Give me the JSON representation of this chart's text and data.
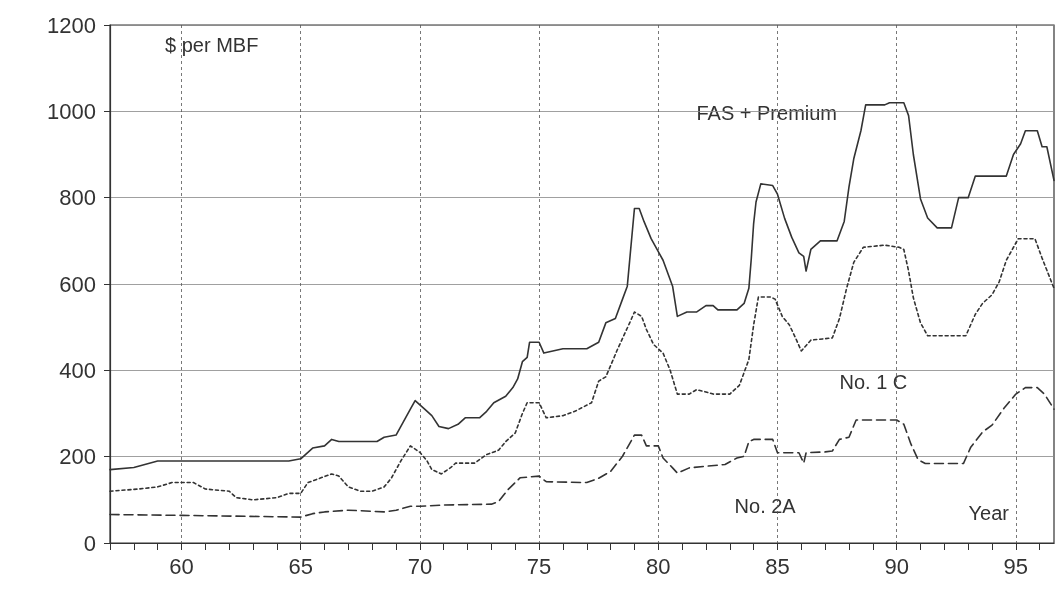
{
  "chart_data": {
    "type": "line",
    "xlabel": "Year",
    "ylabel": "$ per MBF",
    "xlim": [
      57,
      96.6
    ],
    "ylim": [
      0,
      1200
    ],
    "xticks": [
      {
        "value": 57,
        "label": null
      },
      {
        "value": 58,
        "label": null
      },
      {
        "value": 59,
        "label": null
      },
      60,
      {
        "value": 61,
        "label": null
      },
      {
        "value": 62,
        "label": null
      },
      {
        "value": 63,
        "label": null
      },
      {
        "value": 64,
        "label": null
      },
      65,
      {
        "value": 66,
        "label": null
      },
      {
        "value": 67,
        "label": null
      },
      {
        "value": 68,
        "label": null
      },
      {
        "value": 69,
        "label": null
      },
      70,
      {
        "value": 71,
        "label": null
      },
      {
        "value": 72,
        "label": null
      },
      {
        "value": 73,
        "label": null
      },
      {
        "value": 74,
        "label": null
      },
      75,
      {
        "value": 76,
        "label": null
      },
      {
        "value": 77,
        "label": null
      },
      {
        "value": 78,
        "label": null
      },
      {
        "value": 79,
        "label": null
      },
      80,
      {
        "value": 81,
        "label": null
      },
      {
        "value": 82,
        "label": null
      },
      {
        "value": 83,
        "label": null
      },
      {
        "value": 84,
        "label": null
      },
      85,
      {
        "value": 86,
        "label": null
      },
      {
        "value": 87,
        "label": null
      },
      {
        "value": 88,
        "label": null
      },
      {
        "value": 89,
        "label": null
      },
      90,
      {
        "value": 91,
        "label": null
      },
      {
        "value": 92,
        "label": null
      },
      {
        "value": 93,
        "label": null
      },
      {
        "value": 94,
        "label": null
      },
      95,
      {
        "value": 96,
        "label": null
      }
    ],
    "yticks": [
      0,
      200,
      400,
      600,
      800,
      1000,
      1200
    ],
    "grid": true,
    "legend": false,
    "marker": "none",
    "series": [
      {
        "name": "FAS + Premium",
        "color": "#333333",
        "line_style": "solid",
        "x": [
          57,
          58,
          59,
          64.5,
          65,
          65.5,
          66,
          66.3,
          66.6,
          68.2,
          68.5,
          69,
          69.3,
          69.6,
          69.8,
          70.2,
          70.5,
          70.8,
          71.2,
          71.6,
          71.9,
          72.5,
          72.8,
          73.1,
          73.6,
          73.9,
          74.1,
          74.3,
          74.5,
          74.6,
          75,
          75.2,
          76,
          77,
          77.5,
          77.8,
          78.2,
          78.5,
          78.7,
          79,
          79.2,
          79.4,
          79.7,
          80.2,
          80.6,
          80.8,
          81.2,
          81.6,
          82,
          82.3,
          82.5,
          83.3,
          83.6,
          83.8,
          83.9,
          84,
          84.1,
          84.3,
          84.8,
          85,
          85.3,
          85.6,
          85.9,
          86.1,
          86.2,
          86.4,
          86.8,
          87.5,
          87.8,
          88,
          88.2,
          88.5,
          88.7,
          89.5,
          89.7,
          90.3,
          90.5,
          90.7,
          91,
          91.3,
          91.7,
          92.3,
          92.6,
          93,
          93.3,
          94.6,
          94.9,
          95.2,
          95.4,
          95.9,
          96.1,
          96.3,
          96.6
        ],
        "values": [
          170,
          175,
          190,
          190,
          195,
          220,
          225,
          240,
          235,
          235,
          245,
          250,
          280,
          310,
          330,
          310,
          295,
          270,
          265,
          275,
          290,
          290,
          305,
          325,
          340,
          360,
          380,
          420,
          430,
          465,
          465,
          440,
          450,
          450,
          465,
          510,
          520,
          565,
          595,
          775,
          775,
          745,
          705,
          655,
          595,
          525,
          535,
          535,
          550,
          550,
          540,
          540,
          555,
          590,
          658,
          740,
          790,
          832,
          828,
          808,
          752,
          708,
          672,
          664,
          630,
          680,
          700,
          700,
          745,
          825,
          890,
          955,
          1015,
          1015,
          1020,
          1020,
          990,
          900,
          797,
          753,
          730,
          730,
          800,
          800,
          850,
          850,
          900,
          925,
          955,
          955,
          918,
          918,
          840
        ]
      },
      {
        "name": "No. 1 C",
        "color": "#333333",
        "line_style": "dotted",
        "x": [
          57,
          58.2,
          59,
          59.6,
          60.5,
          61,
          62,
          62.3,
          63,
          64,
          64.5,
          65,
          65.3,
          65.8,
          66.3,
          66.6,
          67,
          67.5,
          68,
          68.5,
          68.8,
          69.2,
          69.6,
          70,
          70.3,
          70.5,
          70.9,
          71.3,
          71.5,
          72.3,
          72.8,
          73.3,
          73.6,
          74,
          74.3,
          74.5,
          75,
          75.3,
          76,
          76.5,
          77.2,
          77.5,
          77.8,
          78.3,
          78.8,
          79,
          79.3,
          79.5,
          79.8,
          80.2,
          80.5,
          80.8,
          81.3,
          81.6,
          82,
          82.3,
          83,
          83.4,
          83.8,
          84,
          84.2,
          84.7,
          84.9,
          85.2,
          85.5,
          85.8,
          86,
          86.4,
          87.3,
          87.6,
          87.9,
          88.2,
          88.6,
          89.5,
          90.1,
          90.3,
          90.5,
          90.7,
          91,
          91.3,
          92.9,
          93.3,
          93.6,
          94,
          94.3,
          94.6,
          95.1,
          95.8,
          96.1,
          96.6
        ],
        "values": [
          120,
          125,
          130,
          140,
          140,
          125,
          120,
          105,
          100,
          105,
          115,
          115,
          140,
          150,
          160,
          155,
          130,
          120,
          120,
          130,
          150,
          190,
          225,
          210,
          190,
          170,
          160,
          175,
          185,
          185,
          205,
          215,
          235,
          255,
          300,
          325,
          325,
          290,
          295,
          305,
          325,
          375,
          385,
          450,
          510,
          535,
          525,
          495,
          460,
          440,
          400,
          345,
          345,
          355,
          350,
          345,
          345,
          365,
          425,
          505,
          570,
          570,
          565,
          525,
          505,
          470,
          445,
          470,
          475,
          520,
          590,
          650,
          685,
          690,
          685,
          680,
          630,
          568,
          510,
          480,
          480,
          530,
          555,
          575,
          605,
          655,
          705,
          705,
          660,
          590
        ]
      },
      {
        "name": "No. 2A",
        "color": "#333333",
        "line_style": "dashed",
        "x": [
          57,
          60,
          65,
          65.5,
          66,
          67,
          68.5,
          69,
          69.6,
          70,
          71,
          73,
          73.3,
          73.7,
          74.2,
          75,
          75.3,
          77,
          77.5,
          78,
          78.5,
          79,
          79.3,
          79.5,
          80,
          80.2,
          80.6,
          80.8,
          81.3,
          82.8,
          83.3,
          83.6,
          83.8,
          84,
          84.8,
          85,
          85.9,
          86.1,
          86.2,
          87,
          87.3,
          87.6,
          88,
          88.3,
          90,
          90.3,
          90.6,
          90.9,
          91.2,
          92.8,
          93.1,
          93.6,
          94,
          94.5,
          95,
          95.4,
          95.9,
          96.2,
          96.6
        ],
        "values": [
          66,
          64,
          60,
          68,
          72,
          76,
          72,
          76,
          85,
          85,
          88,
          90,
          96,
          124,
          151,
          155,
          142,
          140,
          150,
          166,
          201,
          250,
          250,
          225,
          225,
          197,
          174,
          162,
          174,
          182,
          197,
          201,
          235,
          240,
          240,
          209,
          209,
          185,
          209,
          211,
          213,
          240,
          245,
          285,
          285,
          275,
          229,
          193,
          184,
          184,
          221,
          257,
          273,
          312,
          345,
          360,
          360,
          345,
          310
        ]
      }
    ]
  }
}
